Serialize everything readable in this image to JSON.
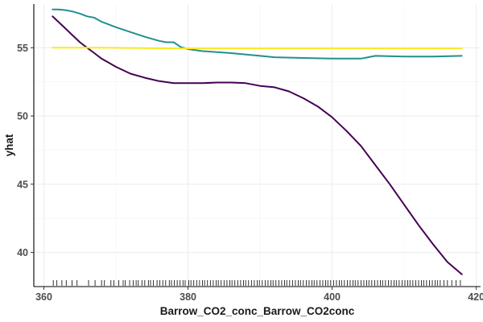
{
  "chart_data": {
    "type": "line",
    "title": "",
    "xlabel": "Barrow_CO2_conc_Barrow_CO2conc",
    "ylabel": "yhat",
    "xlim": [
      358.6,
      420.6
    ],
    "ylim": [
      37.5,
      58.2
    ],
    "x_ticks": [
      360,
      380,
      400,
      420
    ],
    "y_ticks": [
      40,
      45,
      50,
      55
    ],
    "grid": true,
    "legend": "none",
    "series": [
      {
        "color": "#440154",
        "x": [
          361.2,
          362,
          363,
          364,
          365,
          366,
          367,
          368,
          369,
          370,
          372,
          374,
          376,
          378,
          380,
          382,
          384,
          386,
          388,
          390,
          392,
          394,
          396,
          398,
          400,
          402,
          404,
          406,
          408,
          410,
          412,
          414,
          416,
          418
        ],
        "y": [
          57.3,
          56.9,
          56.4,
          55.9,
          55.4,
          55.0,
          54.6,
          54.2,
          53.9,
          53.6,
          53.1,
          52.8,
          52.55,
          52.4,
          52.4,
          52.4,
          52.45,
          52.45,
          52.4,
          52.2,
          52.1,
          51.8,
          51.3,
          50.7,
          49.9,
          48.9,
          47.8,
          46.4,
          45.0,
          43.5,
          42.0,
          40.6,
          39.3,
          38.4
        ]
      },
      {
        "color": "#21908C",
        "x": [
          361.2,
          362,
          363,
          364,
          365,
          366,
          367,
          368,
          370,
          372,
          374,
          376,
          377,
          378,
          379,
          380,
          382,
          386,
          390,
          392,
          396,
          400,
          402,
          404,
          405,
          406,
          410,
          414,
          418
        ],
        "y": [
          57.8,
          57.8,
          57.75,
          57.65,
          57.5,
          57.3,
          57.2,
          56.9,
          56.5,
          56.15,
          55.8,
          55.5,
          55.4,
          55.4,
          55.05,
          54.9,
          54.75,
          54.6,
          54.4,
          54.3,
          54.25,
          54.2,
          54.2,
          54.2,
          54.3,
          54.4,
          54.35,
          54.35,
          54.4
        ]
      },
      {
        "color": "#FDE725",
        "x": [
          361.2,
          368,
          378,
          380,
          390,
          400,
          410,
          418
        ],
        "y": [
          55.0,
          55.0,
          54.95,
          54.95,
          54.95,
          54.95,
          54.95,
          54.95
        ]
      }
    ],
    "rug": [
      361.3,
      361.8,
      362.5,
      363.1,
      363.9,
      364.6,
      366.2,
      367.1,
      368.0,
      368.4,
      369.3,
      369.7,
      370.4,
      371.0,
      371.3,
      371.9,
      372.4,
      372.8,
      373.1,
      373.6,
      374.0,
      374.5,
      374.8,
      375.2,
      375.7,
      376.1,
      376.5,
      376.9,
      377.4,
      377.7,
      378.1,
      378.5,
      378.9,
      379.3,
      379.6,
      380.1,
      380.4,
      380.8,
      381.2,
      381.6,
      382.0,
      382.3,
      382.7,
      383.1,
      383.5,
      383.9,
      384.2,
      384.6,
      385.0,
      385.4,
      385.8,
      386.1,
      386.5,
      386.9,
      387.3,
      387.7,
      388.0,
      388.4,
      388.8,
      389.2,
      389.6,
      389.9,
      390.3,
      390.7,
      391.1,
      391.5,
      391.8,
      392.2,
      392.6,
      393.0,
      393.4,
      393.7,
      394.1,
      394.5,
      394.9,
      395.3,
      395.6,
      396.0,
      396.4,
      396.8,
      397.2,
      397.5,
      397.9,
      398.3,
      398.7,
      399.1,
      399.4,
      399.8,
      400.2,
      400.6,
      401.0,
      401.3,
      401.7,
      402.1,
      402.5,
      402.9,
      403.2,
      403.6,
      404.0,
      404.4,
      404.8,
      405.1,
      405.5,
      405.9,
      406.3,
      406.7,
      407.0,
      407.4,
      407.8,
      408.2,
      408.6,
      408.9,
      409.3,
      409.7,
      410.1,
      410.5,
      410.8,
      411.2,
      411.6,
      412.0,
      412.4,
      412.7,
      413.1,
      413.5,
      413.9,
      414.3,
      414.6,
      415.0,
      415.5,
      416.0,
      416.6,
      417.2,
      417.8
    ]
  }
}
